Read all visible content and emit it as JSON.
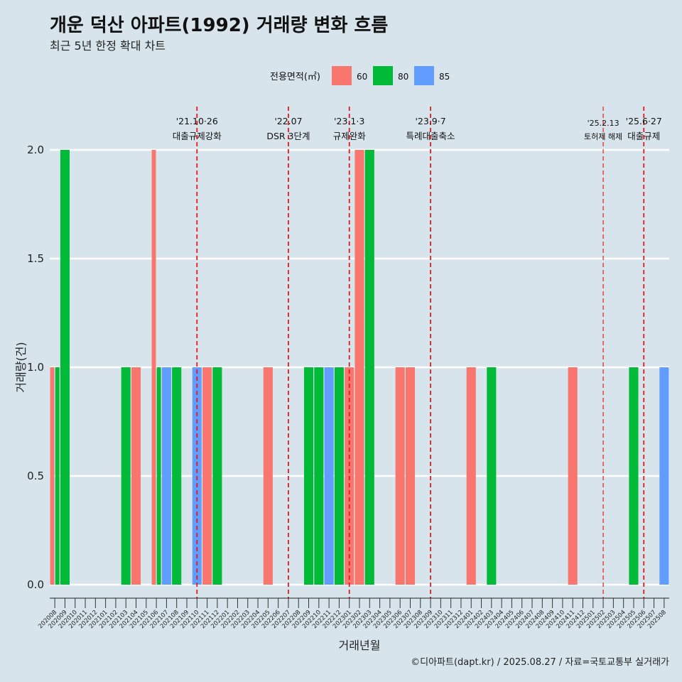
{
  "header": {
    "title": "개운 덕산 아파트(1992) 거래량 변화 흐름",
    "subtitle": "최근 5년 한정 확대 차트"
  },
  "legend": {
    "title": "전용면적(㎡)",
    "items": [
      {
        "label": "60",
        "color": "#F8766D"
      },
      {
        "label": "80",
        "color": "#00BA38"
      },
      {
        "label": "85",
        "color": "#619CFF"
      }
    ]
  },
  "caption": "©디아파트(dapt.kr) / 2025.08.27 / 자료=국토교통부 실거래가",
  "chart_data": {
    "type": "bar",
    "title": "개운 덕산 아파트(1992) 거래량 변화 흐름",
    "xlabel": "거래년월",
    "ylabel": "거래량(건)",
    "ylim": [
      0,
      2
    ],
    "yticks": [
      "0.0",
      "0.5",
      "1.0",
      "1.5",
      "2.0"
    ],
    "yticks_values": [
      0,
      0.5,
      1,
      1.5,
      2
    ],
    "categories": [
      "202008",
      "202009",
      "202010",
      "202011",
      "202012",
      "202101",
      "202102",
      "202103",
      "202104",
      "202105",
      "202106",
      "202107",
      "202108",
      "202109",
      "202110",
      "202111",
      "202112",
      "202201",
      "202202",
      "202203",
      "202204",
      "202205",
      "202206",
      "202207",
      "202208",
      "202209",
      "202210",
      "202211",
      "202212",
      "202301",
      "202302",
      "202303",
      "202304",
      "202305",
      "202306",
      "202307",
      "202308",
      "202309",
      "202310",
      "202311",
      "202312",
      "202401",
      "202402",
      "202403",
      "202404",
      "202405",
      "202406",
      "202407",
      "202408",
      "202409",
      "202410",
      "202411",
      "202412",
      "202501",
      "202502",
      "202503",
      "202504",
      "202505",
      "202506",
      "202507",
      "202508"
    ],
    "series": [
      {
        "name": "60",
        "color": "#F8766D",
        "values": [
          1,
          0,
          0,
          0,
          0,
          0,
          0,
          0,
          1,
          0,
          2,
          0,
          0,
          0,
          0,
          1,
          0,
          0,
          0,
          0,
          0,
          1,
          0,
          0,
          0,
          0,
          0,
          0,
          0,
          1,
          2,
          0,
          0,
          0,
          1,
          1,
          0,
          0,
          0,
          0,
          0,
          1,
          0,
          0,
          0,
          0,
          0,
          0,
          0,
          0,
          0,
          1,
          0,
          0,
          0,
          0,
          0,
          0,
          0,
          0,
          0
        ]
      },
      {
        "name": "80",
        "color": "#00BA38",
        "values": [
          1,
          2,
          0,
          0,
          0,
          0,
          0,
          1,
          0,
          0,
          1,
          0,
          1,
          0,
          0,
          0,
          1,
          0,
          0,
          0,
          0,
          0,
          0,
          0,
          0,
          1,
          1,
          0,
          1,
          0,
          0,
          2,
          0,
          0,
          0,
          0,
          0,
          0,
          0,
          0,
          0,
          0,
          0,
          1,
          0,
          0,
          0,
          0,
          0,
          0,
          0,
          0,
          0,
          0,
          0,
          0,
          0,
          1,
          0,
          0,
          0
        ]
      },
      {
        "name": "85",
        "color": "#619CFF",
        "values": [
          0,
          0,
          0,
          0,
          0,
          0,
          0,
          0,
          0,
          0,
          0,
          1,
          0,
          0,
          1,
          0,
          0,
          0,
          0,
          0,
          0,
          0,
          0,
          0,
          0,
          0,
          0,
          1,
          0,
          0,
          0,
          0,
          0,
          0,
          0,
          0,
          0,
          0,
          0,
          0,
          0,
          0,
          0,
          0,
          0,
          0,
          0,
          0,
          0,
          0,
          0,
          0,
          0,
          0,
          0,
          0,
          0,
          0,
          0,
          0,
          1
        ]
      }
    ],
    "annotations": [
      {
        "x": "202110",
        "date": "'21.10·26",
        "text": "대출규제강화"
      },
      {
        "x": "202207",
        "date": "'22.07",
        "text": "DSR 3단계"
      },
      {
        "x": "202301",
        "date": "'23.1·3",
        "text": "규제완화"
      },
      {
        "x": "202309",
        "date": "'23.9·7",
        "text": "특례대출축소"
      },
      {
        "x": "202502",
        "date": "'25.2.13",
        "text": "토허제 해제",
        "small": true
      },
      {
        "x": "202506",
        "date": "'25.6·27",
        "text": "대출규제"
      }
    ]
  }
}
